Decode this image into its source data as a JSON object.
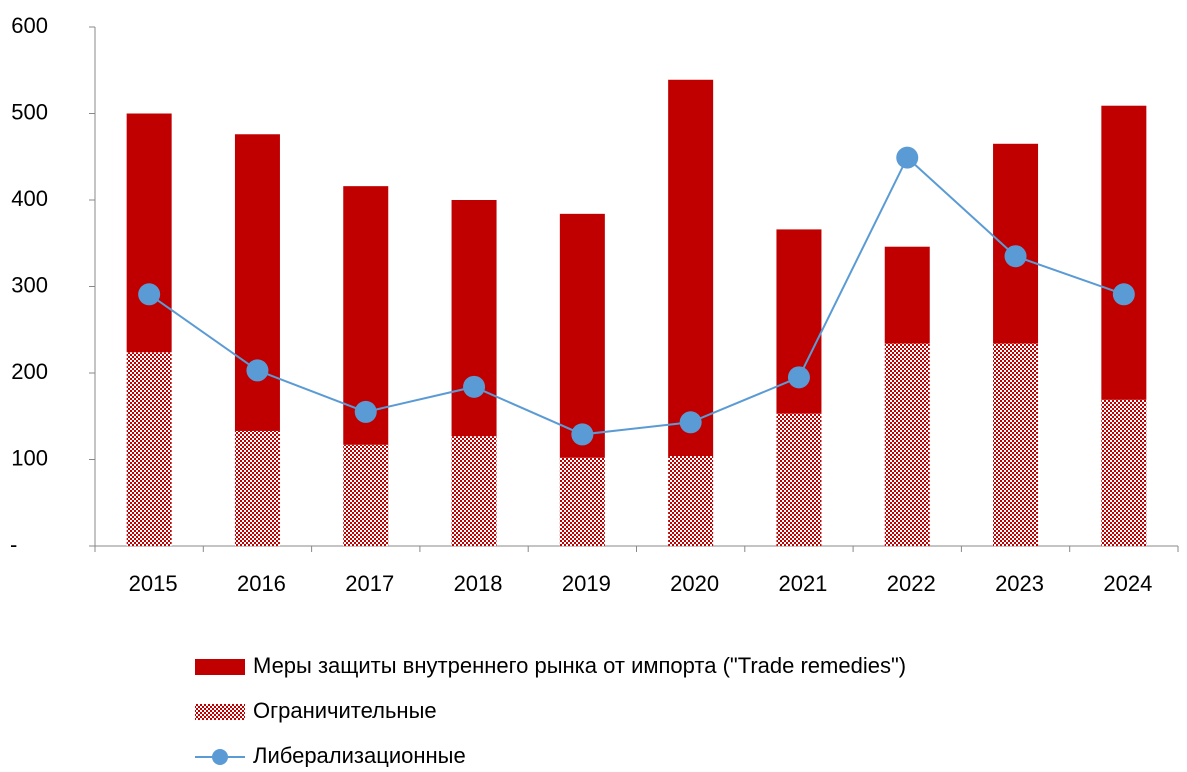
{
  "chart_data": {
    "type": "bar",
    "categories": [
      "2015",
      "2016",
      "2017",
      "2018",
      "2019",
      "2020",
      "2021",
      "2022",
      "2023",
      "2024"
    ],
    "series": [
      {
        "name": "Меры защиты внутреннего рынка от импорта (\"Trade remedies\")",
        "type": "bar",
        "color": "#c00000",
        "values": [
          276,
          343,
          299,
          273,
          282,
          435,
          213,
          112,
          231,
          340
        ]
      },
      {
        "name": "Ограничительные",
        "type": "bar",
        "color": "#c00000",
        "pattern": "checker",
        "values": [
          224,
          133,
          117,
          127,
          102,
          104,
          153,
          234,
          234,
          169
        ]
      },
      {
        "name": "Либерализационные",
        "type": "line",
        "color": "#5b9bd5",
        "values": [
          291,
          203,
          155,
          184,
          129,
          143,
          195,
          449,
          335,
          291
        ]
      }
    ],
    "stacked": true,
    "ylim": [
      0,
      600
    ],
    "yticks": [
      {
        "value": 0,
        "label": "-"
      },
      100,
      200,
      300,
      400,
      500,
      600
    ],
    "grid": false,
    "legend": "bottom"
  }
}
